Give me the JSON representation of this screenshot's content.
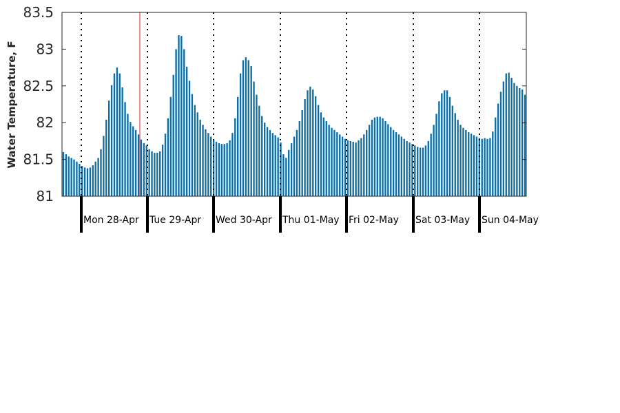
{
  "chart_data": {
    "type": "bar",
    "title": "",
    "xlabel": "",
    "ylabel": "Water Temperature, F",
    "ylim": [
      81,
      83.5
    ],
    "yticks": [
      "81",
      "81.5",
      "82",
      "82.5",
      "83",
      "83.5"
    ],
    "bar_color": "#0a6ea8",
    "marker_color": "#e8281f",
    "grid": false,
    "days": [
      "Mon 28-Apr",
      "Tue 29-Apr",
      "Wed 30-Apr",
      "Thu 01-May",
      "Fri 02-May",
      "Sat 03-May",
      "Sun 04-May"
    ],
    "series": [
      {
        "values": [
          81.6,
          81.57,
          81.54,
          81.52,
          81.5,
          81.47,
          81.44,
          81.41,
          81.39,
          81.38,
          81.39,
          81.42,
          81.47,
          81.52,
          81.64,
          81.82,
          82.04,
          82.3,
          82.51,
          82.67,
          82.75,
          82.67,
          82.48,
          82.28,
          82.12,
          82.01,
          81.95,
          81.9,
          81.84,
          81.77,
          81.72,
          81.69,
          81.64,
          81.61,
          81.59,
          81.59,
          81.61,
          81.7,
          81.85,
          82.06,
          82.35,
          82.65,
          83.0,
          83.19,
          83.18,
          83.0,
          82.76,
          82.57,
          82.39,
          82.24,
          82.14,
          82.04,
          81.97,
          81.91,
          81.86,
          81.81,
          81.77,
          81.74,
          81.72,
          81.71,
          81.71,
          81.72,
          81.76,
          81.86,
          82.06,
          82.35,
          82.67,
          82.85,
          82.89,
          82.85,
          82.77,
          82.56,
          82.38,
          82.23,
          82.09,
          82.0,
          81.94,
          81.9,
          81.86,
          81.83,
          81.8,
          81.73,
          81.57,
          81.52,
          81.63,
          81.72,
          81.81,
          81.9,
          82.02,
          82.17,
          82.32,
          82.44,
          82.49,
          82.45,
          82.36,
          82.24,
          82.14,
          82.07,
          82.02,
          81.97,
          81.93,
          81.9,
          81.87,
          81.84,
          81.81,
          81.78,
          81.76,
          81.75,
          81.74,
          81.73,
          81.76,
          81.79,
          81.84,
          81.9,
          81.97,
          82.04,
          82.07,
          82.08,
          82.08,
          82.06,
          82.02,
          81.98,
          81.94,
          81.9,
          81.87,
          81.84,
          81.81,
          81.78,
          81.75,
          81.73,
          81.71,
          81.69,
          81.67,
          81.66,
          81.66,
          81.69,
          81.75,
          81.85,
          81.97,
          82.12,
          82.29,
          82.4,
          82.44,
          82.44,
          82.35,
          82.23,
          82.13,
          82.04,
          81.97,
          81.93,
          81.9,
          81.87,
          81.85,
          81.83,
          81.81,
          81.79,
          81.78,
          81.79,
          81.78,
          81.79,
          81.88,
          82.07,
          82.26,
          82.42,
          82.56,
          82.67,
          82.68,
          82.61,
          82.54,
          82.5,
          82.47,
          82.45,
          82.38
        ]
      }
    ]
  }
}
